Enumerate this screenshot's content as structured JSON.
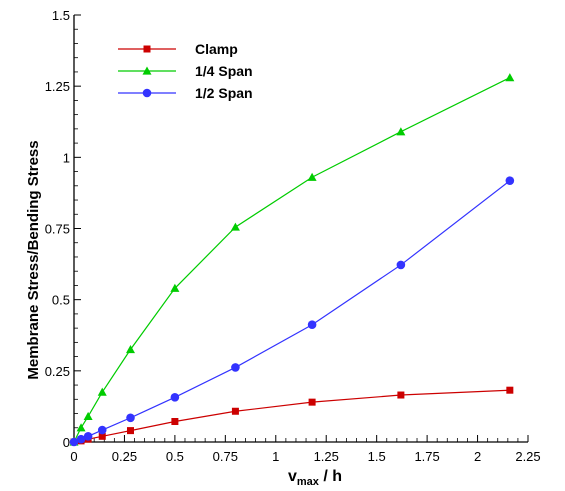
{
  "chart_data": {
    "type": "line",
    "title": "",
    "xlabel": {
      "main": "v",
      "sub": "max",
      "rest": " / h"
    },
    "ylabel": "Membrane Stress/Bending Stress",
    "xlim": [
      0,
      2.25
    ],
    "ylim": [
      0,
      1.5
    ],
    "xticks": [
      0,
      0.25,
      0.5,
      0.75,
      1,
      1.25,
      1.5,
      1.75,
      2,
      2.25
    ],
    "xtick_labels": [
      "0",
      "0.25",
      "0.5",
      "0.75",
      "1",
      "1.25",
      "1.5",
      "1.75",
      "2",
      "2.25"
    ],
    "yticks": [
      0,
      0.25,
      0.5,
      0.75,
      1,
      1.25,
      1.5
    ],
    "ytick_labels": [
      "0",
      "0.25",
      "0.5",
      "0.75",
      "1",
      "1.25",
      "1.5"
    ],
    "grid": false,
    "legend_position": "top-left",
    "series": [
      {
        "name": "Clamp",
        "color": "#cc0000",
        "marker": "square",
        "x": [
          0,
          0.035,
          0.07,
          0.14,
          0.28,
          0.5,
          0.8,
          1.18,
          1.62,
          2.16
        ],
        "y": [
          0,
          0.004,
          0.01,
          0.02,
          0.04,
          0.072,
          0.108,
          0.14,
          0.165,
          0.182
        ]
      },
      {
        "name": "1/4 Span",
        "color": "#00cc00",
        "marker": "triangle",
        "x": [
          0,
          0.035,
          0.07,
          0.14,
          0.28,
          0.5,
          0.8,
          1.18,
          1.62,
          2.16
        ],
        "y": [
          0,
          0.05,
          0.09,
          0.175,
          0.325,
          0.54,
          0.755,
          0.93,
          1.09,
          1.28
        ]
      },
      {
        "name": "1/2 Span",
        "color": "#3333ff",
        "marker": "circle",
        "x": [
          0,
          0.035,
          0.07,
          0.14,
          0.28,
          0.5,
          0.8,
          1.18,
          1.62,
          2.16
        ],
        "y": [
          0,
          0.01,
          0.02,
          0.042,
          0.085,
          0.157,
          0.262,
          0.412,
          0.622,
          0.918
        ]
      }
    ]
  }
}
